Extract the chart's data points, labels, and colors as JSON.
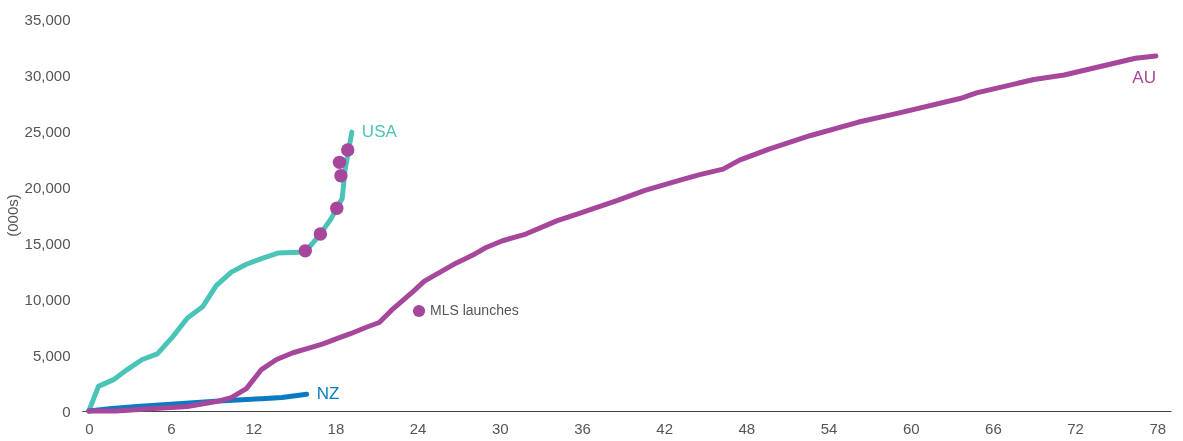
{
  "chart_data": {
    "type": "line",
    "ylabel": "(000s)",
    "xlim": [
      -0.5,
      79
    ],
    "xticks": [
      0,
      6,
      12,
      18,
      24,
      30,
      36,
      42,
      48,
      54,
      60,
      66,
      72,
      78
    ],
    "ylim": [
      0,
      35000
    ],
    "yticks": [
      0,
      {
        "value": 5000,
        "label": "5,000"
      },
      {
        "value": 10000,
        "label": "10,000"
      },
      {
        "value": 15000,
        "label": "15,000"
      },
      {
        "value": 20000,
        "label": "20,000"
      },
      {
        "value": 25000,
        "label": "25,000"
      },
      {
        "value": 30000,
        "label": "30,000"
      },
      {
        "value": 35000,
        "label": "35,000"
      }
    ],
    "grid": false,
    "legend": "center",
    "marker": "none",
    "line_style": "solid",
    "series": [
      {
        "name": "USA",
        "color": "#4bc4b8",
        "x": [
          0,
          0.7,
          1.8,
          2.8,
          3.9,
          5.0,
          6.1,
          7.2,
          8.3,
          9.3,
          10.4,
          11.5,
          12.6,
          13.8,
          15.8,
          16.9,
          17.7,
          18.5,
          18.7,
          19.2
        ],
        "values": [
          0,
          2200,
          2800,
          3700,
          4600,
          5100,
          6600,
          8300,
          9300,
          11200,
          12400,
          13100,
          13600,
          14100,
          14200,
          15800,
          17200,
          19000,
          21500,
          24900
        ]
      },
      {
        "name": "NZ",
        "color": "#0a7bc2",
        "x": [
          0,
          1.5,
          3.5,
          6,
          9.5,
          12.6,
          14.1,
          15.9
        ],
        "values": [
          0,
          200,
          400,
          600,
          900,
          1100,
          1200,
          1500
        ]
      },
      {
        "name": "AU",
        "color": "#a6479c",
        "x": [
          0,
          2,
          4.5,
          7.2,
          9.5,
          10.4,
          11.5,
          12.6,
          13.7,
          14.9,
          16,
          17.1,
          18.2,
          19.1,
          20.3,
          21.2,
          22.1,
          23.6,
          24.5,
          26.8,
          28.0,
          29.0,
          30.2,
          31.9,
          34.2,
          35.7,
          38.6,
          40.6,
          43.1,
          44.6,
          46.3,
          47.5,
          49.7,
          52.7,
          56.2,
          59.1,
          63.6,
          64.8,
          69.0,
          71.2,
          74.0,
          76.4,
          77.9
        ],
        "values": [
          0,
          0,
          200,
          400,
          900,
          1200,
          2000,
          3700,
          4600,
          5200,
          5600,
          6000,
          6500,
          6900,
          7500,
          7900,
          9000,
          10600,
          11600,
          13200,
          13900,
          14600,
          15200,
          15800,
          17000,
          17600,
          18800,
          19700,
          20600,
          21100,
          21600,
          22400,
          23400,
          24600,
          25800,
          26600,
          27900,
          28400,
          29600,
          30000,
          30800,
          31500,
          31700
        ]
      },
      {
        "name": "MLS launches",
        "type": "scatter",
        "marker": "circle",
        "color": "#a6479c",
        "x": [
          15.8,
          16.9,
          18.1,
          18.4,
          18.3,
          18.9
        ],
        "values": [
          14300,
          15800,
          18100,
          21000,
          22200,
          23300
        ]
      }
    ]
  }
}
